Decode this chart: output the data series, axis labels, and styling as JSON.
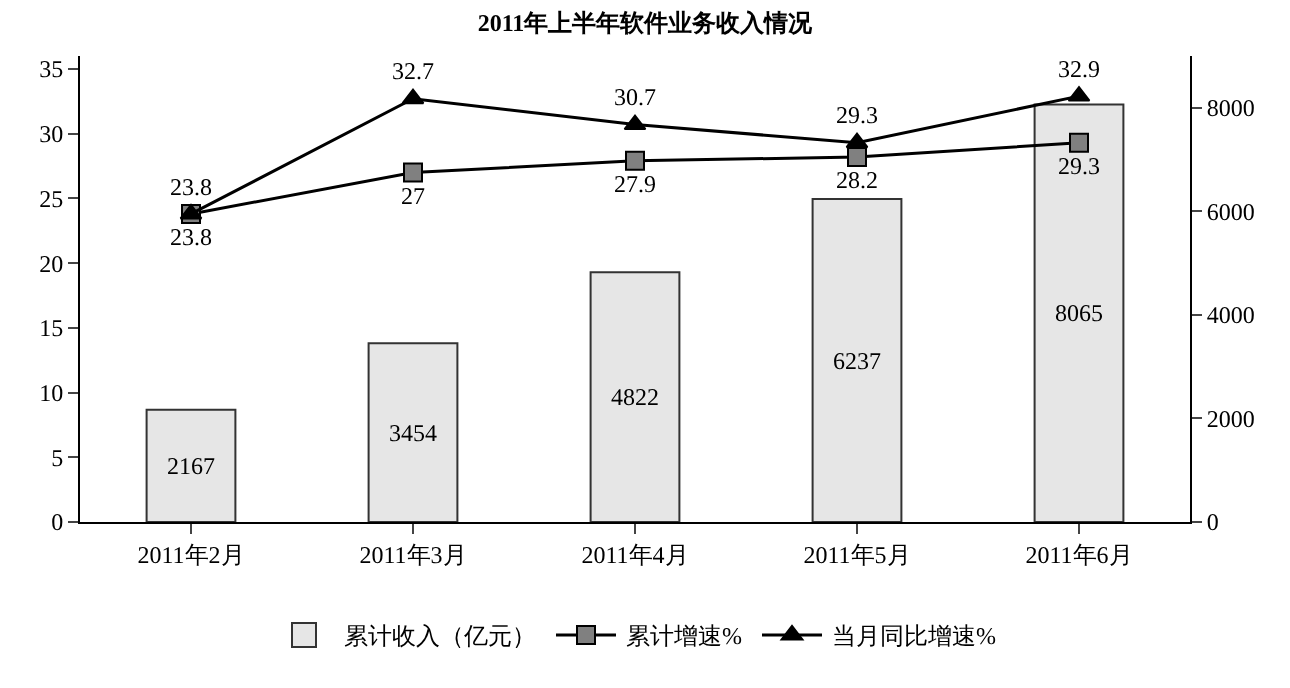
{
  "chart_data": {
    "type": "bar",
    "title": "2011年上半年软件业务收入情况",
    "categories": [
      "2011年2月",
      "2011年3月",
      "2011年4月",
      "2011年5月",
      "2011年6月"
    ],
    "series": [
      {
        "name": "累计收入（亿元）",
        "axis": "y2",
        "color": "#e6e6e6",
        "values": [
          2167,
          3454,
          4822,
          6237,
          8065
        ]
      },
      {
        "name": "累计增速%",
        "type": "line",
        "marker": "square",
        "color": "#000000",
        "values": [
          23.8,
          27,
          27.9,
          28.2,
          29.3
        ]
      },
      {
        "name": "当月同比增速%",
        "type": "line",
        "marker": "triangle",
        "color": "#000000",
        "values": [
          23.8,
          32.7,
          30.7,
          29.3,
          32.9
        ]
      }
    ],
    "ylim": [
      0,
      36
    ],
    "yticks": [
      0,
      5,
      10,
      15,
      20,
      25,
      30,
      35
    ],
    "y2lim": [
      0,
      9000
    ],
    "y2ticks": [
      0,
      2000,
      4000,
      6000,
      8000
    ],
    "data_labels": true,
    "legend": "bottom"
  }
}
